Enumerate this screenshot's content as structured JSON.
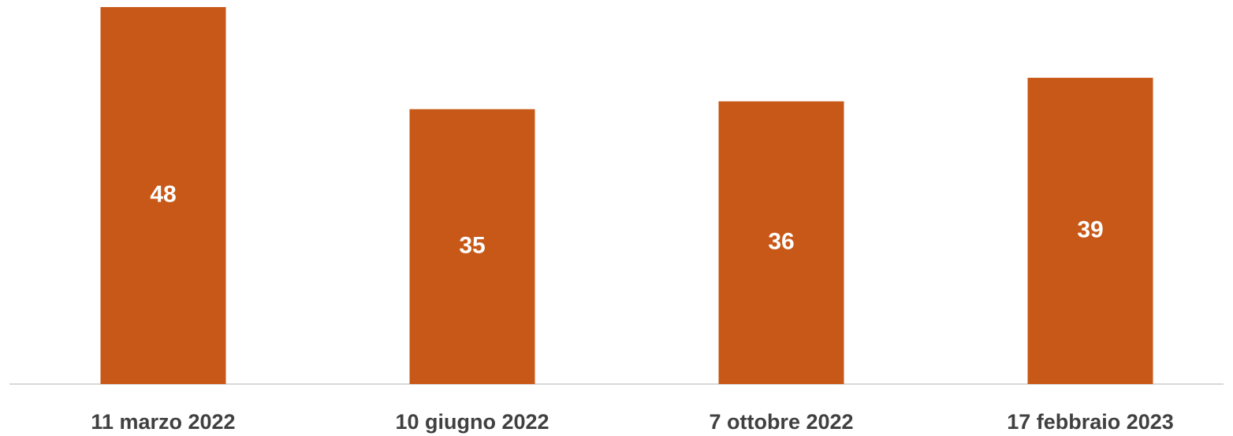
{
  "chart_data": {
    "type": "bar",
    "categories": [
      "11 marzo 2022",
      "10 giugno 2022",
      "7 ottobre 2022",
      "17 febbraio 2023"
    ],
    "values": [
      48,
      35,
      36,
      39
    ],
    "color": "#c85817"
  }
}
